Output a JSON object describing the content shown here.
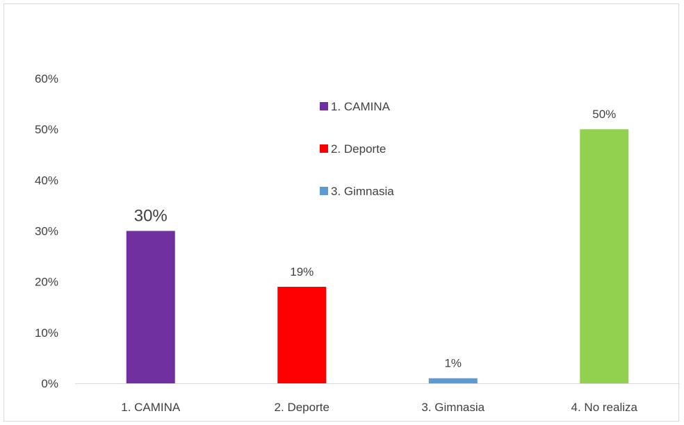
{
  "chart_data": {
    "type": "bar",
    "categories": [
      "1. CAMINA",
      "2. Deporte",
      "3. Gimnasia",
      "4. No realiza"
    ],
    "values": [
      30,
      19,
      1,
      50
    ],
    "value_labels": [
      "30%",
      "19%",
      "1%",
      "50%"
    ],
    "title": "",
    "xlabel": "",
    "ylabel": "",
    "ylim": [
      0,
      60
    ],
    "y_ticks": [
      0,
      10,
      20,
      30,
      40,
      50,
      60
    ],
    "y_tick_labels": [
      "0%",
      "10%",
      "20%",
      "30%",
      "40%",
      "50%",
      "60%"
    ],
    "colors": [
      "#7030a0",
      "#ff0000",
      "#5b9bd5",
      "#92d050"
    ],
    "grid": false,
    "legend": {
      "placement": "center-top",
      "entries": [
        "1. CAMINA",
        "2. Deporte",
        "3. Gimnasia"
      ]
    }
  }
}
